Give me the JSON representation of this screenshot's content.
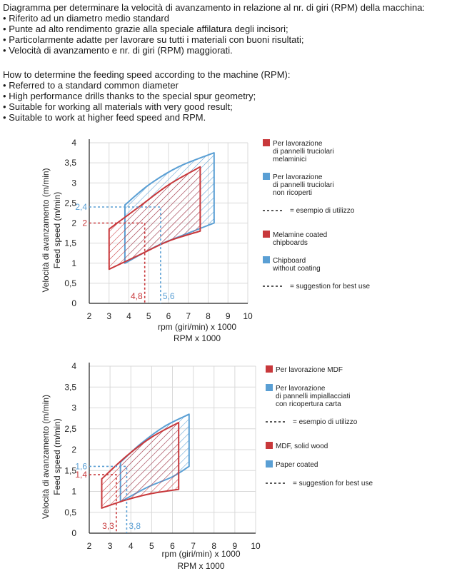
{
  "intro_it": {
    "heading": "Diagramma per determinare la velocità di avanzamento in relazione al nr. di giri (RPM) della macchina:",
    "bullets": [
      "Riferito ad un diametro medio standard",
      "Punte ad alto rendimento grazie alla speciale affilatura degli incisori;",
      "Particolarmente adatte per lavorare su tutti i materiali con buoni risultati;",
      "Velocità di avanzamento e nr. di giri (RPM) maggiorati."
    ]
  },
  "intro_en": {
    "heading": "How to determine the feeding speed according to the machine (RPM):",
    "bullets": [
      "Referred to a standard common diameter",
      "High performance drills thanks to the special spur geometry;",
      "Suitable for working all materials with very good result;",
      "Suitable to work at higher feed speed and RPM."
    ]
  },
  "bullet_char": "•",
  "colors": {
    "red": "#c8383b",
    "blue": "#5a9fd4",
    "grid": "#d9d9d9",
    "axis": "#222222"
  },
  "chart_data": [
    {
      "type": "area",
      "xlabel": [
        "rpm (giri/min) x 1000",
        "RPM x 1000"
      ],
      "ylabel": [
        "Velocità di avanzamento (m/min)",
        "Feed  speed (m/min)"
      ],
      "xlim": [
        2,
        10
      ],
      "ylim": [
        0,
        4
      ],
      "xticks": [
        2,
        3,
        4,
        5,
        6,
        7,
        8,
        9,
        10
      ],
      "yticks": [
        0,
        0.5,
        1,
        1.5,
        2,
        2.5,
        3,
        3.5,
        4
      ],
      "ytick_labels": [
        "0",
        "0,5",
        "1",
        "1,5",
        "2",
        "2,5",
        "3",
        "3,5",
        "4"
      ],
      "series": [
        {
          "name": "Per lavorazione di pannelli truciolari non ricoperti / Chipboard without coating",
          "color": "blue",
          "upper": [
            [
              3.8,
              2.45
            ],
            [
              5,
              2.95
            ],
            [
              6.5,
              3.4
            ],
            [
              8.3,
              3.75
            ]
          ],
          "lower": [
            [
              3.8,
              1.0
            ],
            [
              5.5,
              1.45
            ],
            [
              7,
              1.75
            ],
            [
              8.3,
              2.0
            ]
          ]
        },
        {
          "name": "Per lavorazione di pannelli truciolari melaminici / Melamine coated chipboards",
          "color": "red",
          "upper": [
            [
              3,
              1.85
            ],
            [
              4.5,
              2.4
            ],
            [
              6,
              2.95
            ],
            [
              7.6,
              3.4
            ]
          ],
          "lower": [
            [
              3,
              0.85
            ],
            [
              4.5,
              1.2
            ],
            [
              6,
              1.55
            ],
            [
              7.6,
              1.8
            ]
          ]
        }
      ],
      "examples": [
        {
          "color": "blue",
          "x": 5.6,
          "y": 2.4,
          "x_label": "5,6",
          "y_label": "2,4"
        },
        {
          "color": "red",
          "x": 4.8,
          "y": 2,
          "x_label": "4,8",
          "y_label": "2"
        }
      ],
      "legend": {
        "position": "right",
        "items": [
          {
            "kind": "swatch",
            "color": "red",
            "lines": [
              "Per lavorazione",
              "di pannelli truciolari",
              "melaminici"
            ]
          },
          {
            "kind": "swatch",
            "color": "blue",
            "lines": [
              "Per lavorazione",
              "di pannelli truciolari",
              "non ricoperti"
            ]
          },
          {
            "kind": "dash",
            "lines": [
              "= esempio di utilizzo"
            ]
          },
          {
            "kind": "swatch",
            "color": "red",
            "lines": [
              "Melamine coated",
              "chipboards"
            ]
          },
          {
            "kind": "swatch",
            "color": "blue",
            "lines": [
              "Chipboard",
              "without coating"
            ]
          },
          {
            "kind": "dash",
            "lines": [
              "= suggestion for best use"
            ]
          }
        ]
      },
      "grid": true
    },
    {
      "type": "area",
      "xlabel": [
        "rpm (giri/min) x 1000",
        "RPM x 1000"
      ],
      "ylabel": [
        "Velocità di avanzamento (m/min)",
        "Feed  speed (m/min)"
      ],
      "xlim": [
        2,
        10
      ],
      "ylim": [
        0,
        4
      ],
      "xticks": [
        2,
        3,
        4,
        5,
        6,
        7,
        8,
        9,
        10
      ],
      "yticks": [
        0,
        0.5,
        1,
        1.5,
        2,
        2.5,
        3,
        3.5,
        4
      ],
      "ytick_labels": [
        "0",
        "0,5",
        "1",
        "1,5",
        "2",
        "2,5",
        "3",
        "3,5",
        "4"
      ],
      "series": [
        {
          "name": "Per lavorazione di pannelli impiallacciati con ricopertura carta / Paper coated",
          "color": "blue",
          "upper": [
            [
              3.5,
              1.7
            ],
            [
              4.5,
              2.15
            ],
            [
              5.6,
              2.55
            ],
            [
              6.8,
              2.85
            ]
          ],
          "lower": [
            [
              3.5,
              0.75
            ],
            [
              4.8,
              1.1
            ],
            [
              6,
              1.35
            ],
            [
              6.8,
              1.6
            ]
          ]
        },
        {
          "name": "Per lavorazione MDF / MDF, solid wood",
          "color": "red",
          "upper": [
            [
              2.6,
              1.3
            ],
            [
              3.8,
              1.85
            ],
            [
              5,
              2.3
            ],
            [
              6.3,
              2.65
            ]
          ],
          "lower": [
            [
              2.6,
              0.6
            ],
            [
              3.8,
              0.8
            ],
            [
              5,
              0.95
            ],
            [
              6.3,
              1.05
            ]
          ]
        }
      ],
      "examples": [
        {
          "color": "blue",
          "x": 3.8,
          "y": 1.6,
          "x_label": "3,8",
          "y_label": "1,6"
        },
        {
          "color": "red",
          "x": 3.3,
          "y": 1.4,
          "x_label": "3,3",
          "y_label": "1,4"
        }
      ],
      "legend": {
        "position": "right",
        "items": [
          {
            "kind": "swatch",
            "color": "red",
            "lines": [
              "Per lavorazione MDF"
            ]
          },
          {
            "kind": "swatch",
            "color": "blue",
            "lines": [
              "Per lavorazione",
              "di pannelli impiallacciati",
              "con ricopertura carta"
            ]
          },
          {
            "kind": "dash",
            "lines": [
              "= esempio di utilizzo"
            ]
          },
          {
            "kind": "swatch",
            "color": "red",
            "lines": [
              "MDF, solid wood"
            ]
          },
          {
            "kind": "swatch",
            "color": "blue",
            "lines": [
              "Paper coated"
            ]
          },
          {
            "kind": "dash",
            "lines": [
              "= suggestion for best use"
            ]
          }
        ]
      },
      "grid": true
    }
  ]
}
